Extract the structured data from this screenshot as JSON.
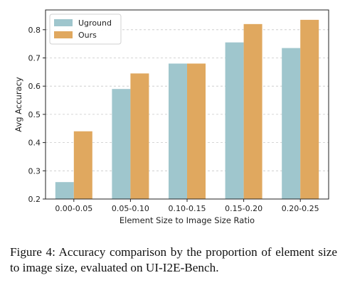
{
  "chart_data": {
    "type": "bar",
    "categories": [
      "0.00-0.05",
      "0.05-0.10",
      "0.10-0.15",
      "0.15-0.20",
      "0.20-0.25"
    ],
    "series": [
      {
        "name": "Uground",
        "color": "#9fc6cd",
        "values": [
          0.26,
          0.59,
          0.68,
          0.755,
          0.735
        ]
      },
      {
        "name": "Ours",
        "color": "#e0a85f",
        "values": [
          0.44,
          0.645,
          0.68,
          0.82,
          0.835
        ]
      }
    ],
    "xlabel": "Element Size to Image Size Ratio",
    "ylabel": "Avg Accuracy",
    "ylim": [
      0.2,
      0.87
    ],
    "yticks": [
      0.2,
      0.3,
      0.4,
      0.5,
      0.6,
      0.7,
      0.8
    ],
    "ytick_labels": [
      "0.2",
      "0.3",
      "0.4",
      "0.5",
      "0.6",
      "0.7",
      "0.8"
    ],
    "grid": "horizontal-dashed",
    "legend_position": "top-left"
  },
  "caption": "Figure 4: Accuracy comparison by the proportion of element size to image size, evaluated on UI-I2E-Bench."
}
